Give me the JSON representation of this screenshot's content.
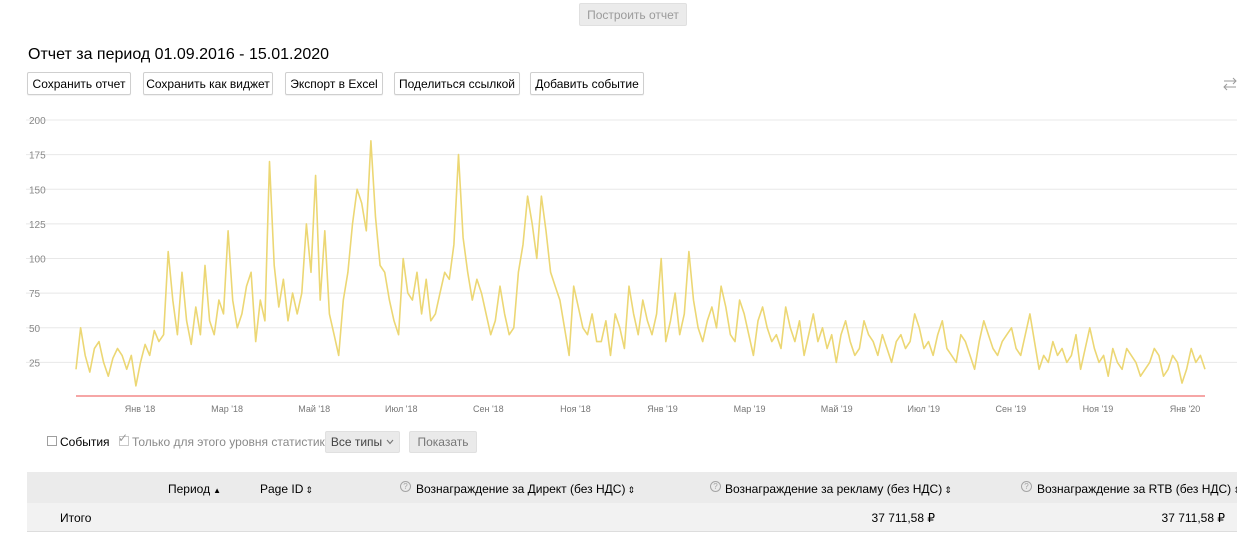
{
  "build_button": "Построить отчет",
  "report_title": "Отчет за период 01.09.2016 - 15.01.2020",
  "toolbar": {
    "save_report": "Сохранить отчет",
    "save_widget": "Сохранить как виджет",
    "export_excel": "Экспорт в Excel",
    "share_link": "Поделиться ссылкой",
    "add_event": "Добавить событие"
  },
  "filters": {
    "events_label": "События",
    "this_level_label": "Только для этого уровня статистики",
    "all_types": "Все типы",
    "show": "Показать"
  },
  "table": {
    "headers": {
      "period": "Период",
      "page_id": "Page ID",
      "direct": "Вознаграждение за Директ (без НДС)",
      "ads": "Вознаграждение за рекламу (без НДС)",
      "rtb": "Вознаграждение за RTB (без НДС)"
    },
    "total_row": {
      "label": "Итого",
      "ads": "37 711,58 ₽",
      "rtb": "37 711,58 ₽"
    }
  },
  "chart_data": {
    "type": "line",
    "ylim": [
      0,
      200
    ],
    "y_ticks": [
      "200",
      "175",
      "150",
      "125",
      "100",
      "75",
      "50",
      "25"
    ],
    "x_ticks": [
      "Янв '18",
      "Мар '18",
      "Май '18",
      "Июл '18",
      "Сен '18",
      "Ноя '18",
      "Янв '19",
      "Мар '19",
      "Май '19",
      "Июл '19",
      "Сен '19",
      "Ноя '19",
      "Янв '20"
    ],
    "grid": true,
    "colors": {
      "main_line": "#ecd774",
      "baseline": "#f07070",
      "grid": "#e8e8e8"
    },
    "series": [
      {
        "values": [
          20,
          50,
          30,
          18,
          35,
          40,
          25,
          15,
          28,
          35,
          30,
          20,
          30,
          8,
          25,
          38,
          30,
          48,
          40,
          45,
          105,
          70,
          45,
          90,
          55,
          38,
          65,
          45,
          95,
          55,
          45,
          70,
          60,
          120,
          70,
          50,
          60,
          80,
          90,
          40,
          70,
          55,
          170,
          95,
          65,
          85,
          55,
          75,
          60,
          75,
          125,
          90,
          160,
          70,
          120,
          60,
          45,
          30,
          70,
          90,
          125,
          150,
          140,
          120,
          185,
          130,
          95,
          90,
          70,
          55,
          45,
          100,
          75,
          70,
          90,
          60,
          85,
          55,
          60,
          75,
          90,
          85,
          110,
          175,
          115,
          90,
          70,
          85,
          75,
          60,
          45,
          55,
          80,
          60,
          45,
          50,
          90,
          110,
          145,
          125,
          100,
          145,
          120,
          90,
          80,
          70,
          50,
          30,
          80,
          65,
          50,
          45,
          60,
          40,
          40,
          55,
          30,
          60,
          50,
          35,
          80,
          60,
          45,
          70,
          55,
          45,
          60,
          100,
          40,
          55,
          75,
          45,
          60,
          105,
          70,
          50,
          40,
          55,
          65,
          50,
          80,
          65,
          45,
          40,
          70,
          60,
          45,
          30,
          55,
          65,
          50,
          40,
          45,
          35,
          65,
          50,
          40,
          55,
          30,
          45,
          60,
          40,
          50,
          35,
          45,
          25,
          45,
          55,
          40,
          30,
          35,
          55,
          45,
          40,
          30,
          45,
          35,
          25,
          40,
          45,
          35,
          40,
          60,
          50,
          35,
          40,
          30,
          45,
          55,
          35,
          30,
          25,
          45,
          40,
          30,
          20,
          40,
          55,
          45,
          35,
          30,
          40,
          45,
          50,
          35,
          30,
          45,
          60,
          40,
          20,
          30,
          25,
          40,
          30,
          35,
          25,
          30,
          45,
          20,
          35,
          50,
          35,
          25,
          30,
          15,
          35,
          25,
          20,
          35,
          30,
          25,
          15,
          20,
          25,
          35,
          30,
          15,
          20,
          30,
          25,
          10,
          20,
          35,
          25,
          30,
          20
        ]
      },
      {
        "values": [
          0,
          0
        ]
      }
    ]
  }
}
